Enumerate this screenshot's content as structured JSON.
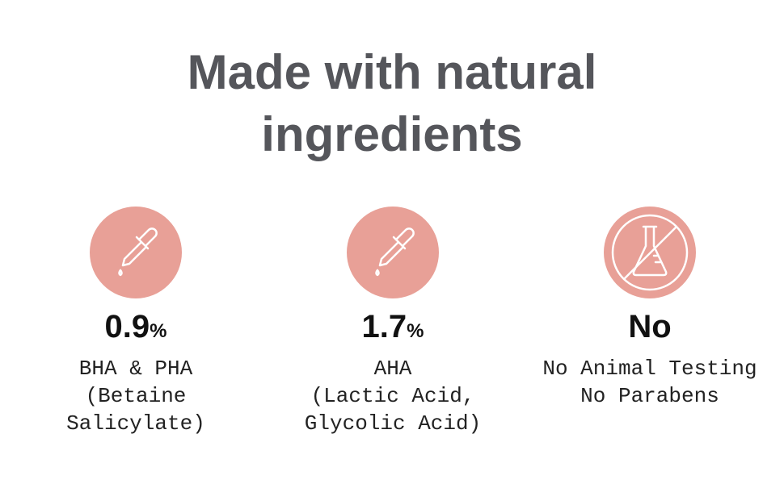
{
  "header": {
    "title_lines": [
      "Made with natural",
      "ingredients"
    ]
  },
  "items": [
    {
      "value": "0.9",
      "unit": "%",
      "lines": [
        "BHA & PHA",
        "(Betaine",
        "Salicylate)"
      ]
    },
    {
      "value": "1.7",
      "unit": "%",
      "lines": [
        "AHA",
        "(Lactic Acid,",
        "Glycolic Acid)"
      ]
    },
    {
      "value": "No",
      "lines": [
        "No Animal Testing",
        "No Parabens"
      ]
    }
  ]
}
